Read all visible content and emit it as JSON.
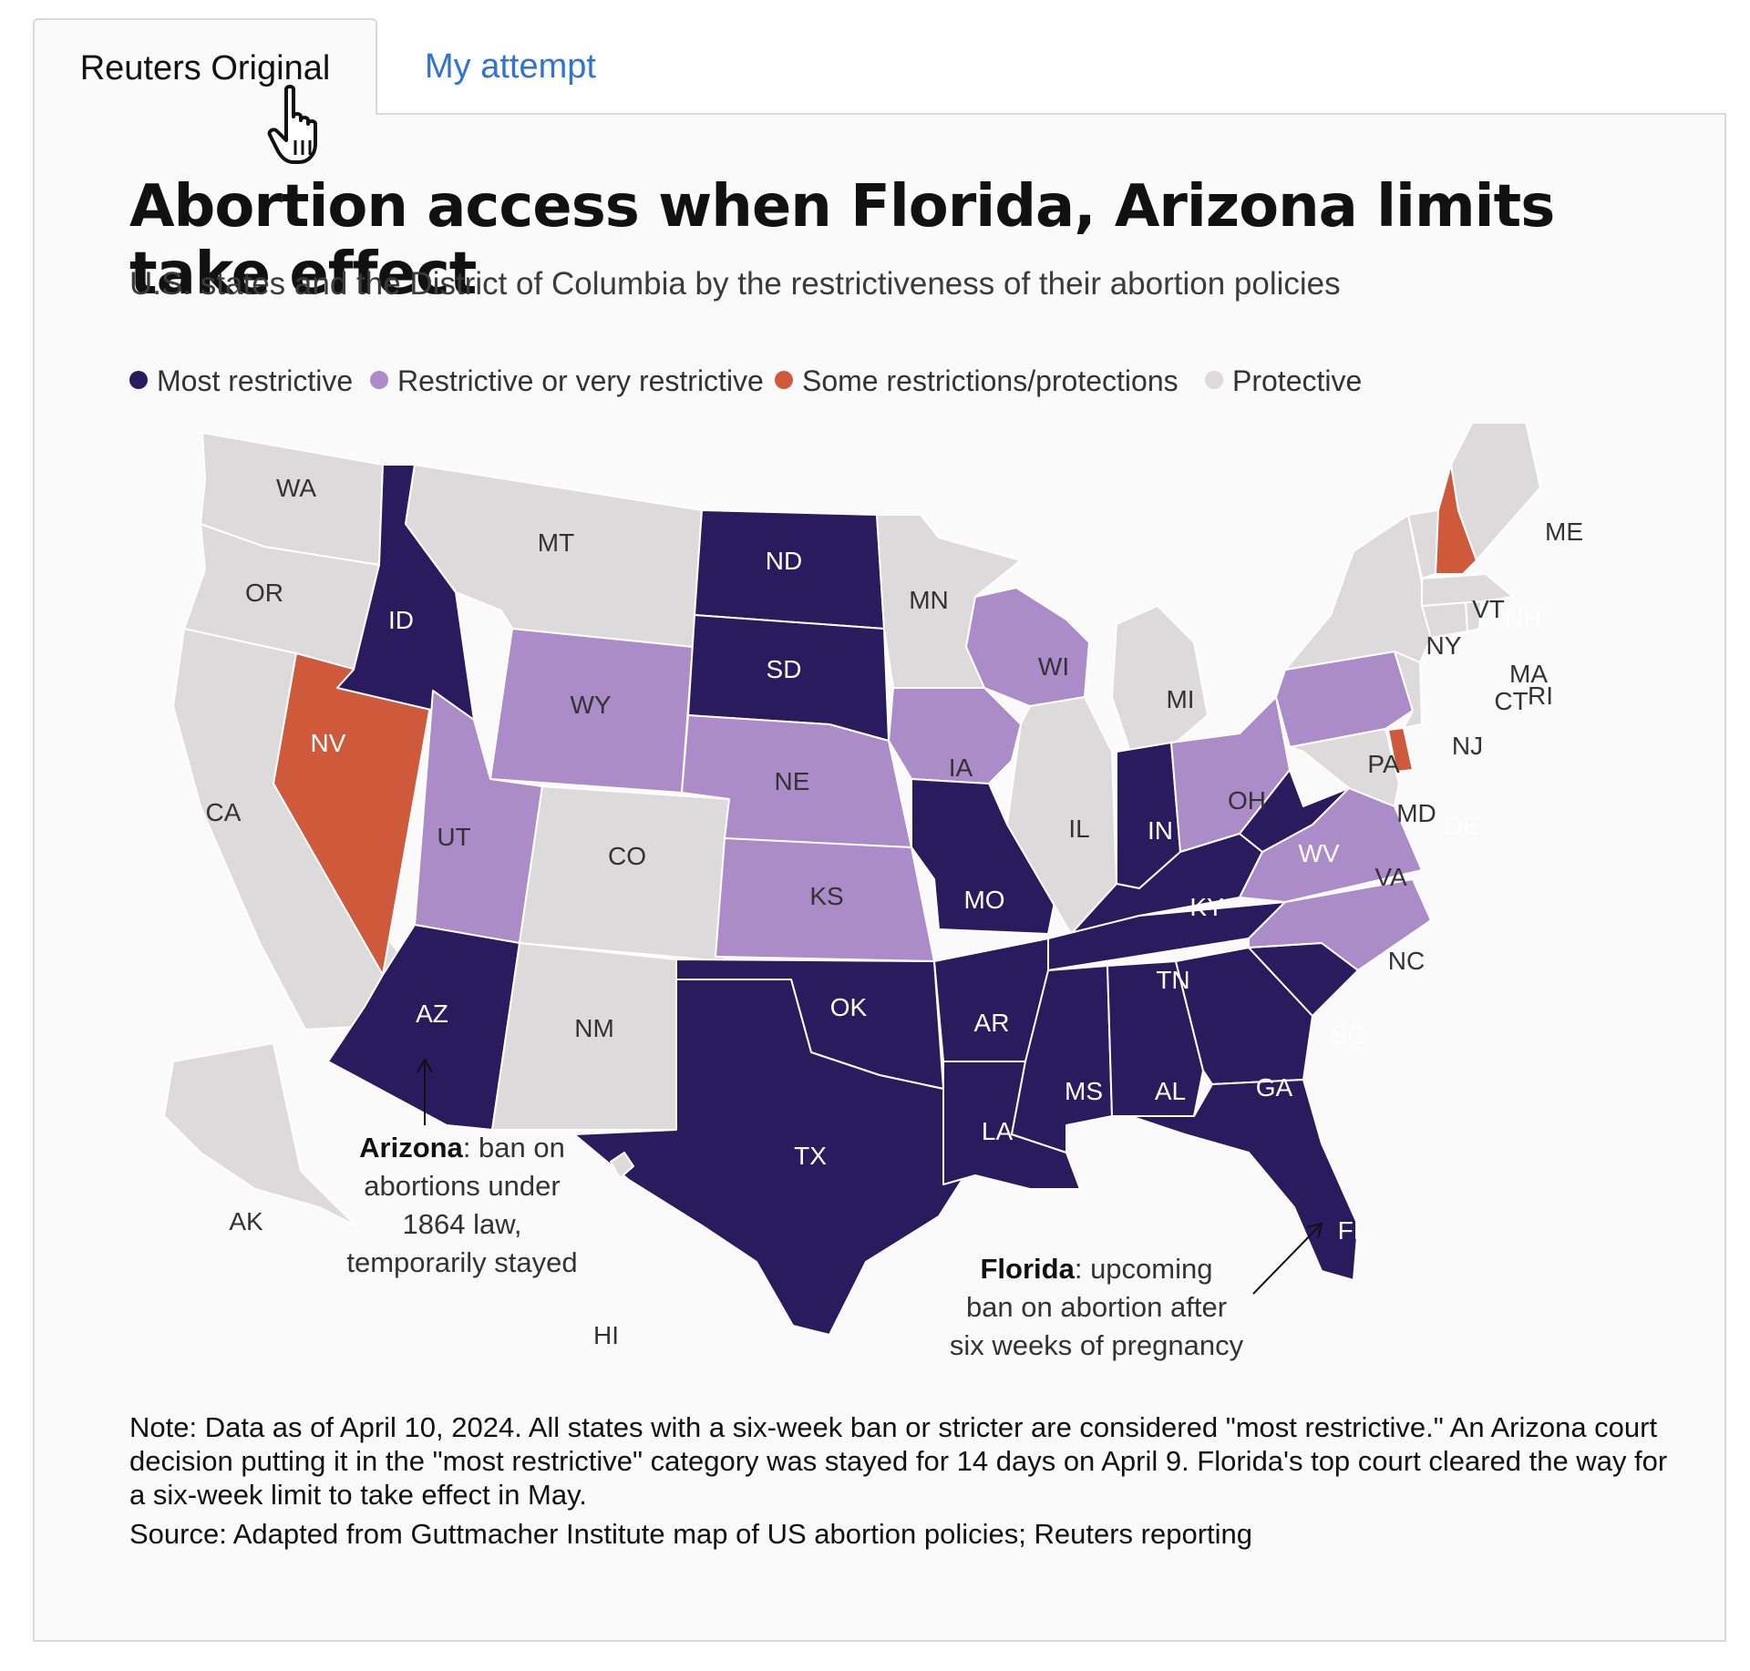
{
  "tabs": [
    {
      "label": "Reuters Original",
      "active": true
    },
    {
      "label": "My attempt",
      "active": false
    }
  ],
  "title": "Abortion access when Florida, Arizona limits take effect",
  "subtitle": "U.S. states and the District of Columbia by the restrictiveness of their abortion policies",
  "legend": [
    {
      "label": "Most restrictive",
      "color": "#2a1a5e"
    },
    {
      "label": "Restrictive or very restrictive",
      "color": "#ab8bc8"
    },
    {
      "label": "Some restrictions/protections",
      "color": "#cf5a3b"
    },
    {
      "label": "Protective",
      "color": "#dcdadb"
    }
  ],
  "states": {
    "WA": "protective",
    "OR": "protective",
    "CA": "protective",
    "NV": "some",
    "ID": "most",
    "MT": "protective",
    "WY": "restrictive",
    "UT": "restrictive",
    "AZ": "most",
    "CO": "protective",
    "NM": "protective",
    "ND": "most",
    "SD": "most",
    "NE": "restrictive",
    "KS": "restrictive",
    "OK": "most",
    "TX": "most",
    "MN": "protective",
    "IA": "restrictive",
    "MO": "most",
    "AR": "most",
    "LA": "most",
    "WI": "restrictive",
    "IL": "protective",
    "MI": "protective",
    "IN": "most",
    "OH": "restrictive",
    "KY": "most",
    "TN": "most",
    "MS": "most",
    "AL": "most",
    "GA": "most",
    "FL": "most",
    "SC": "most",
    "NC": "restrictive",
    "VA": "restrictive",
    "WV": "most",
    "PA": "restrictive",
    "NY": "protective",
    "VT": "protective",
    "NH": "some",
    "ME": "protective",
    "MA": "protective",
    "RI": "protective",
    "CT": "protective",
    "NJ": "protective",
    "DE": "some",
    "MD": "protective",
    "AK": "protective",
    "HI": "protective"
  },
  "annotations": {
    "arizona": {
      "bold": "Arizona",
      "lines": [
        ": ban on",
        "abortions under",
        "1864 law,",
        "temporarily stayed"
      ]
    },
    "florida": {
      "bold": "Florida",
      "lines": [
        ": upcoming",
        "ban on abortion after",
        "six weeks of pregnancy"
      ]
    }
  },
  "note": "Note: Data as of April 10, 2024. All states with a six-week ban or stricter are considered \"most restrictive.\" An Arizona court decision putting it in the \"most restrictive\" category was stayed for 14 days on April 9. Florida's top court cleared the way for a six-week limit to take effect in May.",
  "source": "Source: Adapted from Guttmacher Institute map of US abortion policies; Reuters reporting"
}
